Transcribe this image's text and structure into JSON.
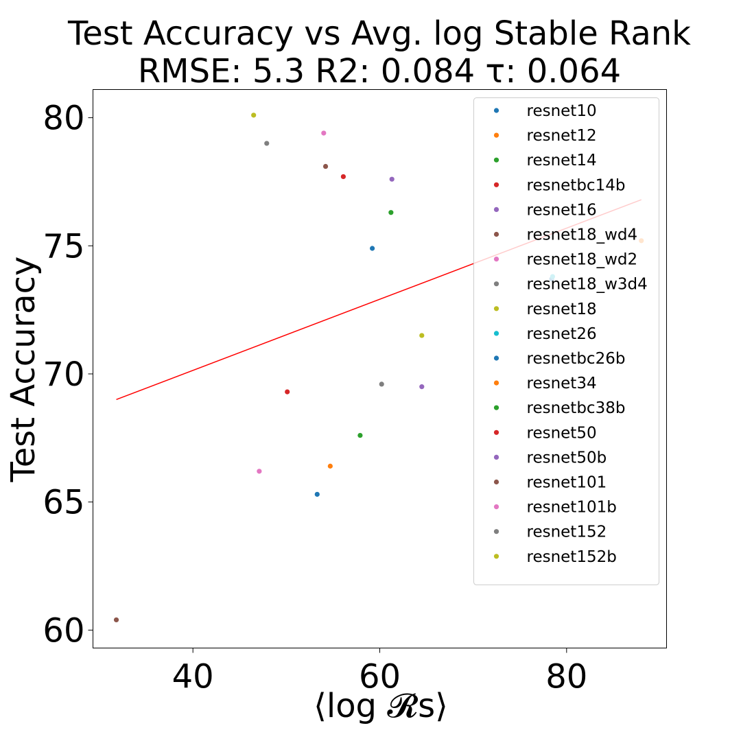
{
  "chart_data": {
    "type": "scatter",
    "title": "Test Accuracy vs Avg. log Stable Rank",
    "subtitle": "RMSE: 5.3 R2: 0.084 τ: 0.064",
    "xlabel": "⟨log 𝓡s⟩",
    "ylabel": "Test Accuracy",
    "xlim": [
      29.3,
      90.7
    ],
    "ylim": [
      59.3,
      81.1
    ],
    "xticks": [
      40,
      60,
      80
    ],
    "yticks": [
      60,
      65,
      70,
      75,
      80
    ],
    "grid": false,
    "legend_position": "top-right",
    "fit_line": {
      "color": "#ff0000",
      "x": [
        31.8,
        88.0
      ],
      "y": [
        69.0,
        76.8
      ]
    },
    "series": [
      {
        "name": "resnet10",
        "color": "#1f77b4",
        "x": [
          78.4
        ],
        "y": [
          73.7
        ]
      },
      {
        "name": "resnet12",
        "color": "#ff7f0e",
        "x": [
          88.0
        ],
        "y": [
          75.2
        ]
      },
      {
        "name": "resnet14",
        "color": "#2ca02c",
        "x": [
          61.2
        ],
        "y": [
          76.3
        ]
      },
      {
        "name": "resnetbc14b",
        "color": "#d62728",
        "x": [
          56.1
        ],
        "y": [
          77.7
        ]
      },
      {
        "name": "resnet16",
        "color": "#9467bd",
        "x": [
          61.3
        ],
        "y": [
          77.6
        ]
      },
      {
        "name": "resnet18_wd4",
        "color": "#8c564b",
        "x": [
          54.2
        ],
        "y": [
          78.1
        ]
      },
      {
        "name": "resnet18_wd2",
        "color": "#e377c2",
        "x": [
          54.0
        ],
        "y": [
          79.4
        ]
      },
      {
        "name": "resnet18_w3d4",
        "color": "#7f7f7f",
        "x": [
          47.9
        ],
        "y": [
          79.0
        ]
      },
      {
        "name": "resnet18",
        "color": "#bcbd22",
        "x": [
          46.5
        ],
        "y": [
          80.1
        ]
      },
      {
        "name": "resnet26",
        "color": "#17becf",
        "x": [
          78.5
        ],
        "y": [
          73.8
        ]
      },
      {
        "name": "resnetbc26b",
        "color": "#1f77b4",
        "x": [
          59.2,
          53.3
        ],
        "y": [
          74.9,
          65.3
        ]
      },
      {
        "name": "resnet34",
        "color": "#ff7f0e",
        "x": [
          54.7
        ],
        "y": [
          66.4
        ]
      },
      {
        "name": "resnetbc38b",
        "color": "#2ca02c",
        "x": [
          57.9
        ],
        "y": [
          67.6
        ]
      },
      {
        "name": "resnet50",
        "color": "#d62728",
        "x": [
          50.1
        ],
        "y": [
          69.3
        ]
      },
      {
        "name": "resnet50b",
        "color": "#9467bd",
        "x": [
          64.5
        ],
        "y": [
          69.5
        ]
      },
      {
        "name": "resnet101",
        "color": "#8c564b",
        "x": [
          31.8
        ],
        "y": [
          60.4
        ]
      },
      {
        "name": "resnet101b",
        "color": "#e377c2",
        "x": [
          47.1
        ],
        "y": [
          66.2
        ]
      },
      {
        "name": "resnet152",
        "color": "#7f7f7f",
        "x": [
          60.2
        ],
        "y": [
          69.6
        ]
      },
      {
        "name": "resnet152b",
        "color": "#bcbd22",
        "x": [
          64.5
        ],
        "y": [
          71.5
        ]
      }
    ]
  }
}
